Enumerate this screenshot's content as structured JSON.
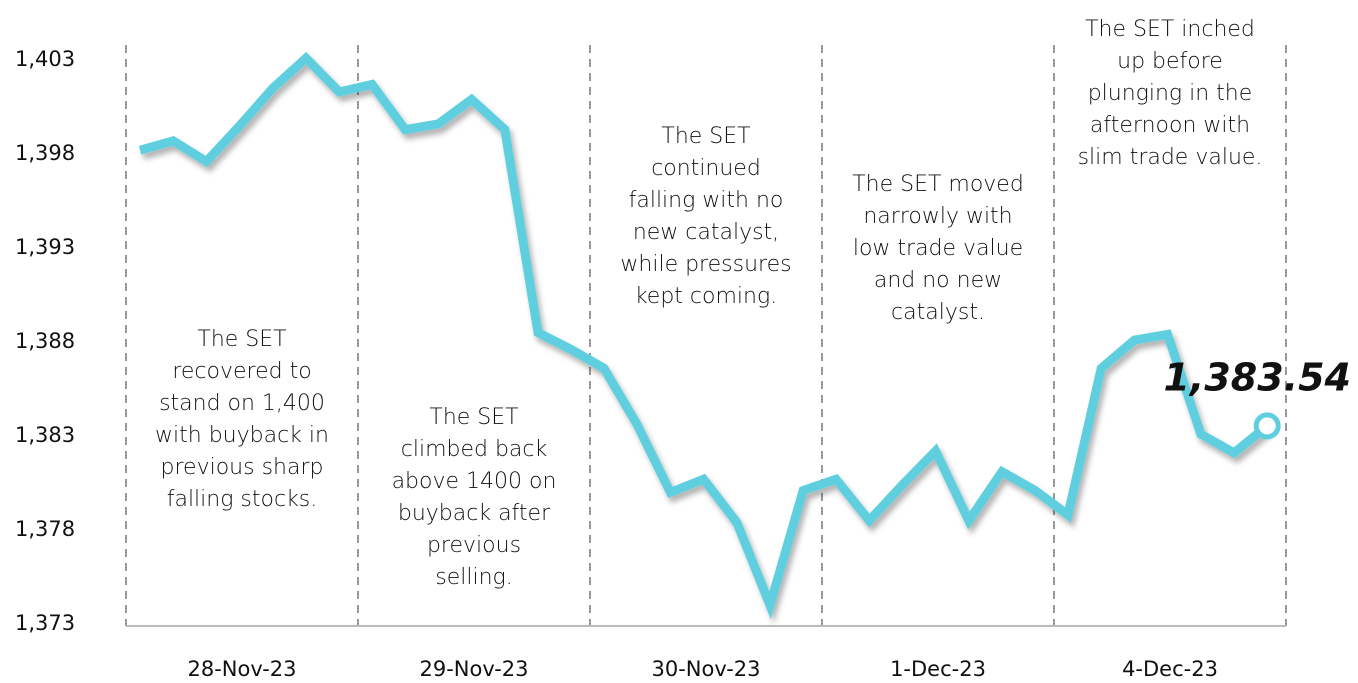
{
  "chart_data": {
    "type": "line",
    "categories": [
      "28-Nov-23",
      "29-Nov-23",
      "30-Nov-23",
      "1-Dec-23",
      "4-Dec-23"
    ],
    "values": [
      [
        1398.2,
        1398.7,
        1397.6,
        1399.5,
        1401.5,
        1403.1,
        1401.3
      ],
      [
        1401.7,
        1399.3,
        1399.6,
        1400.9,
        1399.3,
        1388.5,
        1387.6
      ],
      [
        1386.6,
        1383.6,
        1380.0,
        1380.7,
        1378.4,
        1374.0,
        1380.1
      ],
      [
        1380.7,
        1378.5,
        1380.4,
        1382.2,
        1378.5,
        1381.1,
        1380.1
      ],
      [
        1378.8,
        1386.6,
        1388.1,
        1388.4,
        1383.1,
        1382.1,
        1383.54
      ]
    ],
    "last_value_label": "1,383.54",
    "color": "#5fcfe0",
    "ylim": [
      1373,
      1403
    ],
    "yticks": [
      {
        "value": 1373,
        "label": "1,373"
      },
      {
        "value": 1378,
        "label": "1,378"
      },
      {
        "value": 1383,
        "label": "1,383"
      },
      {
        "value": 1388,
        "label": "1,388"
      },
      {
        "value": 1393,
        "label": "1,393"
      },
      {
        "value": 1398,
        "label": "1,398"
      },
      {
        "value": 1403,
        "label": "1,403"
      }
    ],
    "annotations": [
      [
        "The SET",
        "recovered to",
        "stand on 1,400",
        "with buyback in",
        "previous sharp",
        "falling stocks."
      ],
      [
        "The SET",
        "climbed back",
        "above 1400 on",
        "buyback after",
        "previous",
        "selling."
      ],
      [
        "The SET",
        "continued",
        "falling with no",
        "new catalyst,",
        "while pressures",
        "kept coming."
      ],
      [
        "The SET moved",
        "narrowly with",
        "low trade value",
        "and no new",
        "catalyst."
      ],
      [
        "The SET inched",
        "up before",
        "plunging in the",
        "afternoon with",
        "slim trade value."
      ]
    ]
  }
}
